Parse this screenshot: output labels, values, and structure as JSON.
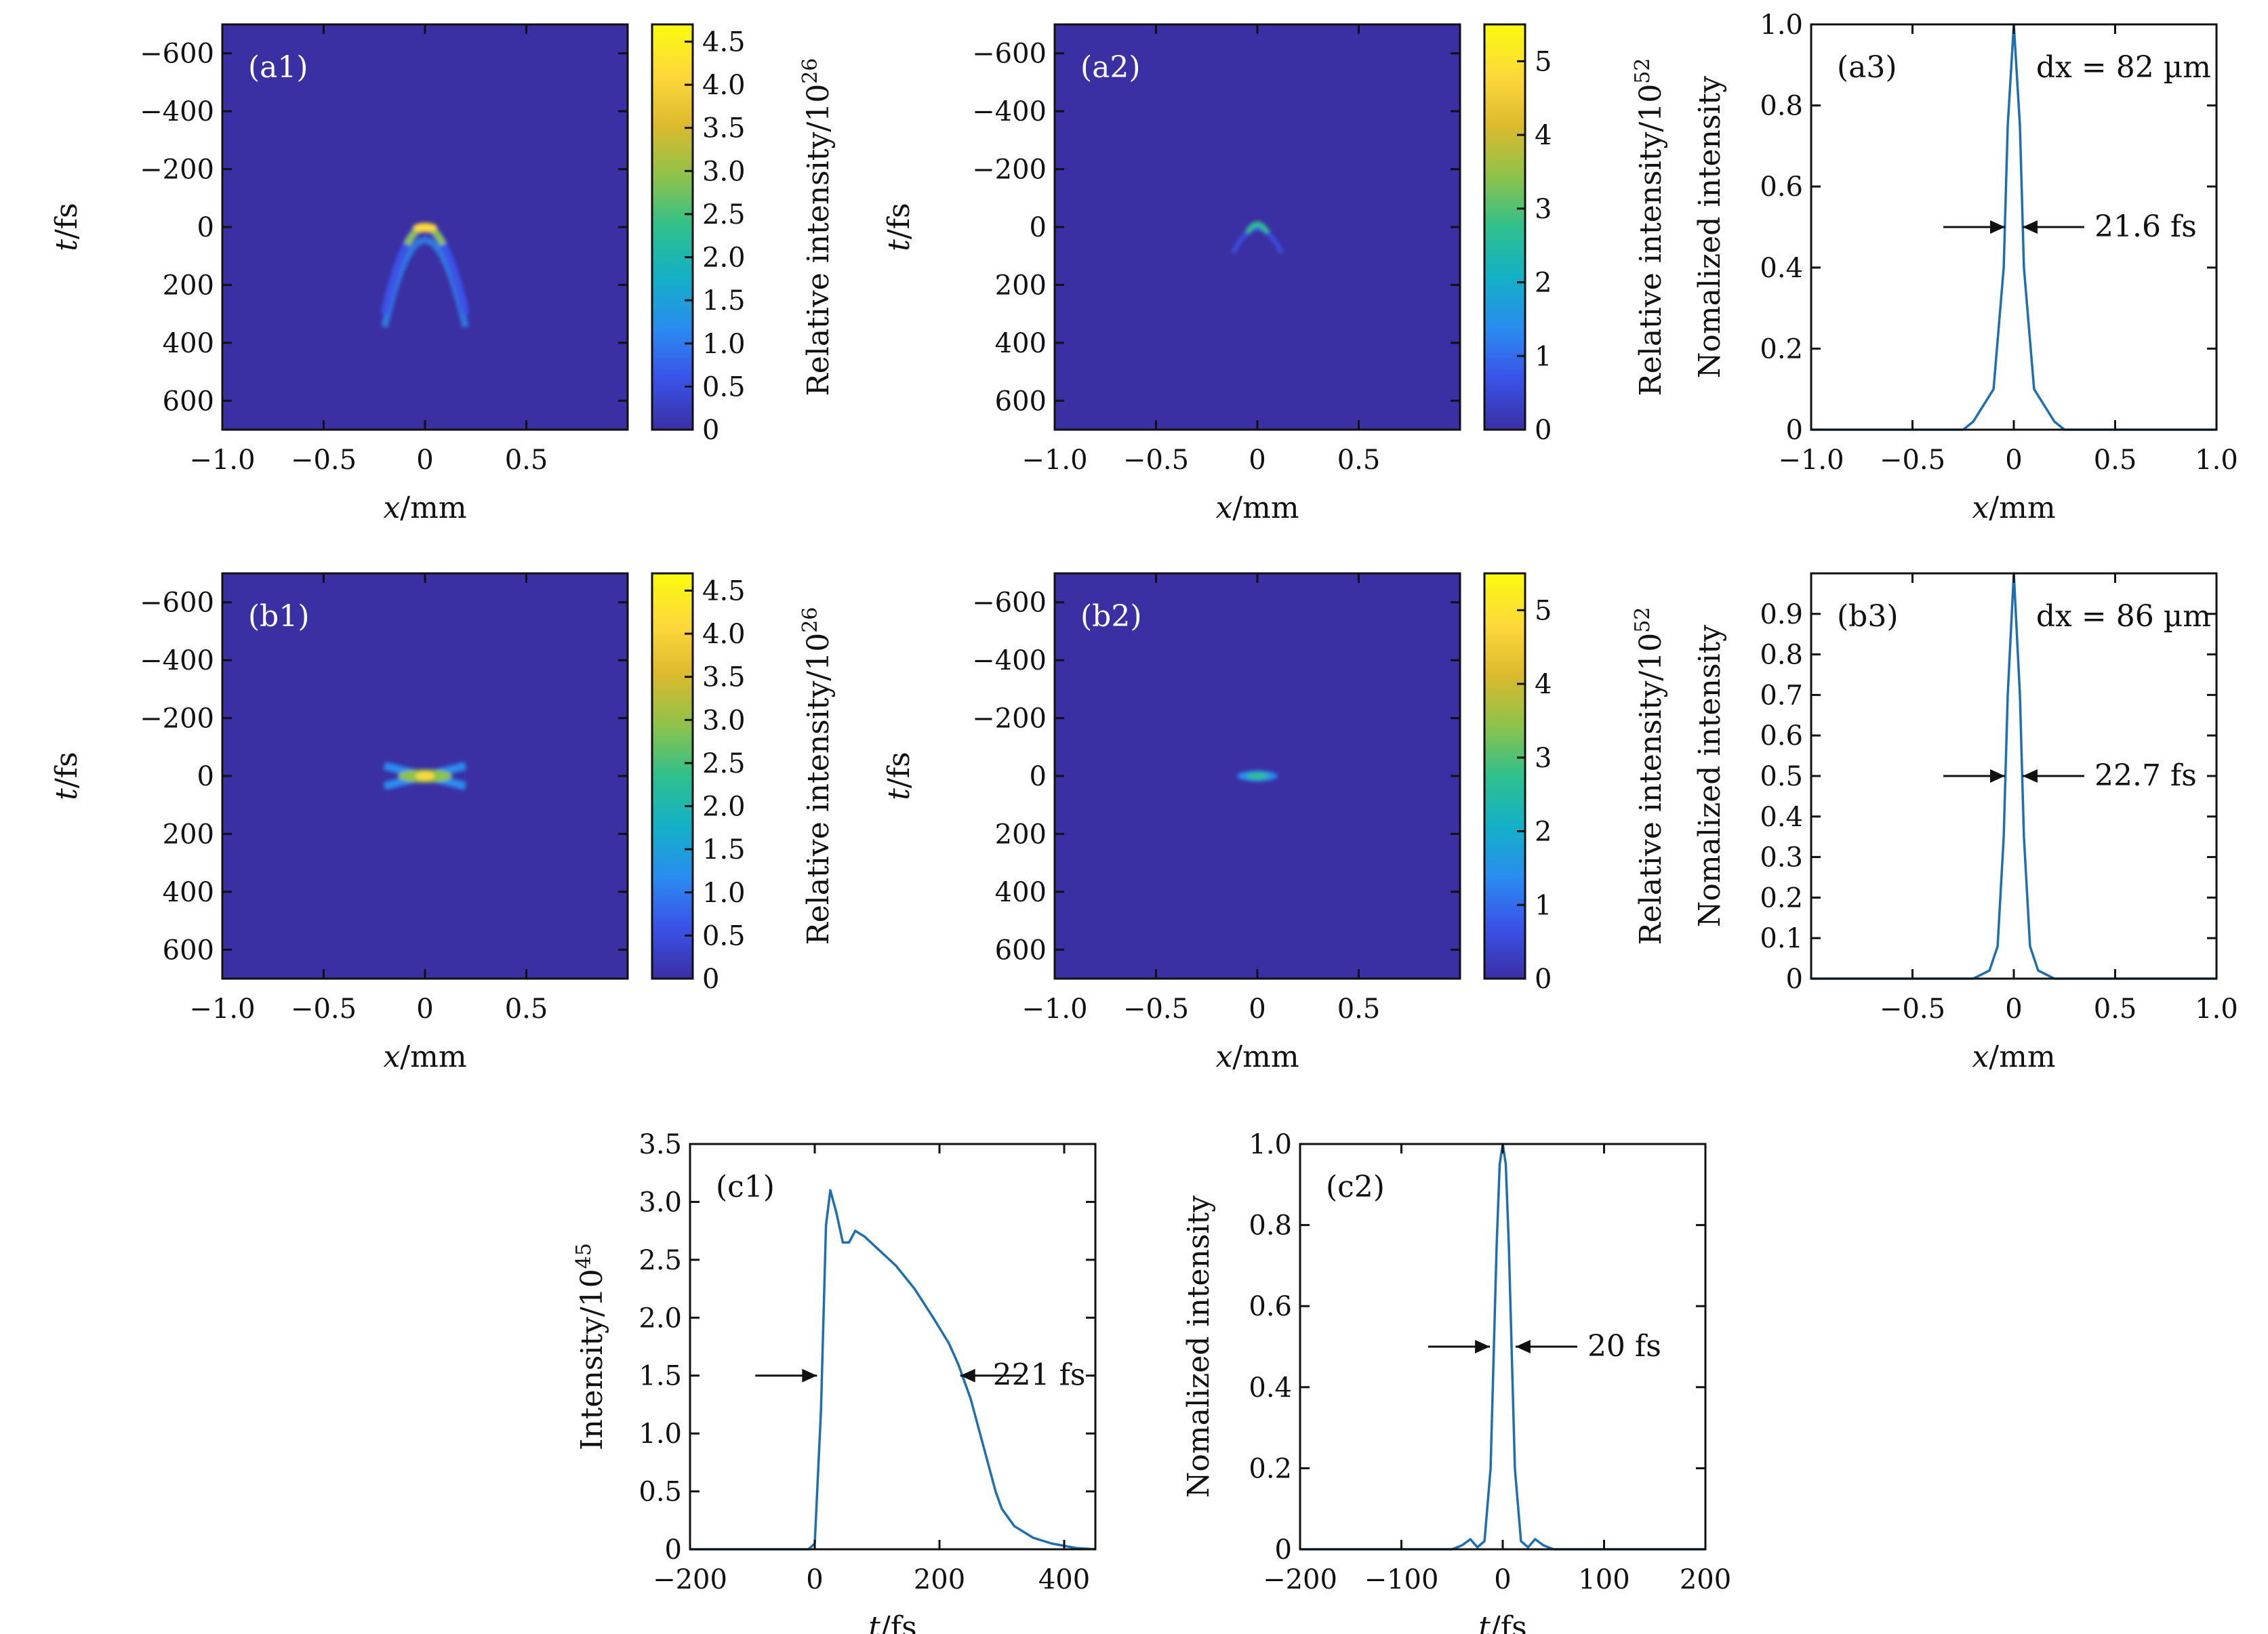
{
  "colors": {
    "heatmap_background": "#3a2fa3",
    "line": "#1f6fb0",
    "axis": "#111111",
    "colormap": [
      "#3b2fa4",
      "#3a52e8",
      "#2a8cf0",
      "#13b0c6",
      "#2fc08c",
      "#8ec24a",
      "#dcba2e",
      "#fdd93a",
      "#f9fb0e"
    ]
  },
  "chart_data": [
    {
      "panel": "(a1)",
      "type": "heatmap",
      "xlabel": "x/mm",
      "ylabel": "t/fs",
      "xlim": [
        -1.0,
        1.0
      ],
      "ylim": [
        700,
        -700
      ],
      "xticks": [
        "−1.0",
        "−0.5",
        "0",
        "0.5"
      ],
      "yticks": [
        "−600",
        "−400",
        "−200",
        "0",
        "200",
        "400",
        "600"
      ],
      "colorbar": {
        "label": "Relative intensity/10",
        "exponent": "26",
        "max": 4.7,
        "ticks": [
          "0",
          "0.5",
          "1.0",
          "1.5",
          "2.0",
          "2.5",
          "3.0",
          "3.5",
          "4.0",
          "4.5"
        ]
      },
      "feature": "parabolic arc, apex at x=0 mm, t=0 fs, extending to t≈300 fs at x=±0.2 mm"
    },
    {
      "panel": "(a2)",
      "type": "heatmap",
      "xlabel": "x/mm",
      "ylabel": "t/fs",
      "xlim": [
        -1.0,
        1.0
      ],
      "ylim": [
        700,
        -700
      ],
      "xticks": [
        "−1.0",
        "−0.5",
        "0",
        "0.5"
      ],
      "yticks": [
        "−600",
        "−400",
        "−200",
        "0",
        "200",
        "400",
        "600"
      ],
      "colorbar": {
        "label": "Relative intensity/10",
        "exponent": "52",
        "max": 5.5,
        "ticks": [
          "0",
          "1",
          "2",
          "3",
          "4",
          "5"
        ]
      },
      "feature": "small arc near x=0 mm, t=0 fs"
    },
    {
      "panel": "(a3)",
      "type": "line",
      "xlabel": "x/mm",
      "ylabel": "Nomalized intensity",
      "xlim": [
        -1.0,
        1.0
      ],
      "ylim": [
        0,
        1.0
      ],
      "xticks": [
        "−1.0",
        "−0.5",
        "0",
        "0.5",
        "1.0"
      ],
      "yticks": [
        "0",
        "0.2",
        "0.4",
        "0.6",
        "0.8",
        "1.0"
      ],
      "annotation": "dx = 82 µm",
      "width_label": "21.6 fs",
      "x": [
        -1.0,
        -0.25,
        -0.2,
        -0.1,
        -0.05,
        -0.03,
        0,
        0.03,
        0.05,
        0.1,
        0.2,
        0.25,
        1.0
      ],
      "y": [
        0,
        0,
        0.02,
        0.1,
        0.4,
        0.75,
        1.0,
        0.75,
        0.4,
        0.1,
        0.02,
        0,
        0
      ]
    },
    {
      "panel": "(b1)",
      "type": "heatmap",
      "xlabel": "x/mm",
      "ylabel": "t/fs",
      "xlim": [
        -1.0,
        1.0
      ],
      "ylim": [
        700,
        -700
      ],
      "xticks": [
        "−1.0",
        "−0.5",
        "0",
        "0.5"
      ],
      "yticks": [
        "−600",
        "−400",
        "−200",
        "0",
        "200",
        "400",
        "600"
      ],
      "colorbar": {
        "label": "Relative intensity/10",
        "exponent": "26",
        "max": 4.7,
        "ticks": [
          "0",
          "0.5",
          "1.0",
          "1.5",
          "2.0",
          "2.5",
          "3.0",
          "3.5",
          "4.0",
          "4.5"
        ]
      },
      "feature": "X-shaped pattern centered at x=0 mm, t=0 fs"
    },
    {
      "panel": "(b2)",
      "type": "heatmap",
      "xlabel": "x/mm",
      "ylabel": "t/fs",
      "xlim": [
        -1.0,
        1.0
      ],
      "ylim": [
        700,
        -700
      ],
      "xticks": [
        "−1.0",
        "−0.5",
        "0",
        "0.5"
      ],
      "yticks": [
        "−600",
        "−400",
        "−200",
        "0",
        "200",
        "400",
        "600"
      ],
      "colorbar": {
        "label": "Relative intensity/10",
        "exponent": "52",
        "max": 5.5,
        "ticks": [
          "0",
          "1",
          "2",
          "3",
          "4",
          "5"
        ]
      },
      "feature": "compact spot at x=0 mm, t=0 fs"
    },
    {
      "panel": "(b3)",
      "type": "line",
      "xlabel": "x/mm",
      "ylabel": "Nomalized intensity",
      "xlim": [
        -1.0,
        1.0
      ],
      "ylim": [
        0,
        1.0
      ],
      "xticks": [
        "−0.5",
        "0",
        "0.5",
        "1.0"
      ],
      "yticks": [
        "0",
        "0.1",
        "0.2",
        "0.3",
        "0.4",
        "0.5",
        "0.6",
        "0.7",
        "0.8",
        "0.9"
      ],
      "annotation": "dx = 86 µm",
      "width_label": "22.7 fs",
      "x": [
        -1.0,
        -0.2,
        -0.12,
        -0.08,
        -0.05,
        -0.03,
        0,
        0.03,
        0.05,
        0.08,
        0.12,
        0.2,
        1.0
      ],
      "y": [
        0,
        0,
        0.02,
        0.08,
        0.35,
        0.7,
        1.0,
        0.7,
        0.35,
        0.08,
        0.02,
        0,
        0
      ]
    },
    {
      "panel": "(c1)",
      "type": "line",
      "xlabel": "t/fs",
      "ylabel": "Intensity/10",
      "ylabel_exponent": "45",
      "xlim": [
        -200,
        450
      ],
      "ylim": [
        0,
        3.5
      ],
      "xticks": [
        "−200",
        "0",
        "200",
        "400"
      ],
      "yticks": [
        "0",
        "0.5",
        "1.0",
        "1.5",
        "2.0",
        "2.5",
        "3.0",
        "3.5"
      ],
      "width_label": "221 fs",
      "x": [
        -200,
        -10,
        0,
        10,
        18,
        25,
        35,
        45,
        55,
        65,
        80,
        100,
        130,
        160,
        190,
        215,
        230,
        250,
        270,
        290,
        300,
        320,
        350,
        380,
        400,
        420,
        450
      ],
      "y": [
        0,
        0,
        0.05,
        1.2,
        2.8,
        3.1,
        2.9,
        2.65,
        2.65,
        2.75,
        2.7,
        2.6,
        2.45,
        2.25,
        2.0,
        1.78,
        1.6,
        1.3,
        0.9,
        0.5,
        0.35,
        0.2,
        0.1,
        0.05,
        0.03,
        0.01,
        0
      ]
    },
    {
      "panel": "(c2)",
      "type": "line",
      "xlabel": "t/fs",
      "ylabel": "Nomalized intensity",
      "xlim": [
        -200,
        200
      ],
      "ylim": [
        0,
        1.0
      ],
      "xticks": [
        "−200",
        "−100",
        "0",
        "100",
        "200"
      ],
      "yticks": [
        "0",
        "0.2",
        "0.4",
        "0.6",
        "0.8",
        "1.0"
      ],
      "width_label": "20 fs",
      "x": [
        -200,
        -50,
        -40,
        -32,
        -25,
        -18,
        -12,
        -6,
        -3,
        0,
        3,
        6,
        12,
        18,
        25,
        32,
        40,
        50,
        200
      ],
      "y": [
        0,
        0,
        0.01,
        0.025,
        0.005,
        0.02,
        0.2,
        0.75,
        0.95,
        1.0,
        0.95,
        0.75,
        0.2,
        0.02,
        0.005,
        0.025,
        0.01,
        0,
        0
      ]
    }
  ]
}
